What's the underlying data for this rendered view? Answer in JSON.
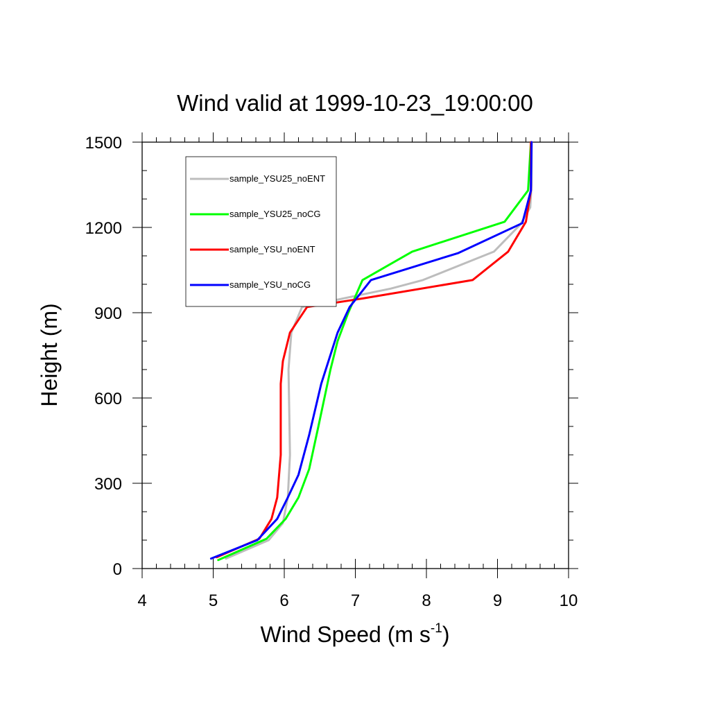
{
  "chart_data": {
    "type": "line",
    "title": "Wind valid at 1999-10-23_19:00:00",
    "xlabel": {
      "main": "Wind Speed (m s",
      "superscript": "-1",
      "close": ")"
    },
    "ylabel": "Height (m)",
    "xlim": [
      4,
      10
    ],
    "ylim": [
      0,
      1500
    ],
    "xticks": [
      4,
      5,
      6,
      7,
      8,
      9,
      10
    ],
    "yticks": [
      0,
      300,
      600,
      900,
      1200,
      1500
    ],
    "xtick_labels": [
      "4",
      "5",
      "6",
      "7",
      "8",
      "9",
      "10"
    ],
    "ytick_labels": [
      "0",
      "300",
      "600",
      "900",
      "1200",
      "1500"
    ],
    "grid": false,
    "legend_position": "top-left",
    "series": [
      {
        "name": "sample_YSU25_noENT",
        "color": "#bdbdbd",
        "points": [
          [
            5.18,
            35
          ],
          [
            5.78,
            100
          ],
          [
            5.98,
            160
          ],
          [
            6.05,
            250
          ],
          [
            6.08,
            400
          ],
          [
            6.07,
            550
          ],
          [
            6.06,
            700
          ],
          [
            6.1,
            830
          ],
          [
            6.25,
            920
          ],
          [
            7.5,
            985
          ],
          [
            7.95,
            1015
          ],
          [
            8.95,
            1115
          ],
          [
            9.32,
            1210
          ],
          [
            9.46,
            1270
          ],
          [
            9.48,
            1350
          ],
          [
            9.48,
            1500
          ]
        ]
      },
      {
        "name": "sample_YSU25_noCG",
        "color": "#00ff00",
        "points": [
          [
            5.07,
            30
          ],
          [
            5.75,
            105
          ],
          [
            6.02,
            175
          ],
          [
            6.2,
            250
          ],
          [
            6.35,
            350
          ],
          [
            6.48,
            500
          ],
          [
            6.65,
            700
          ],
          [
            6.75,
            800
          ],
          [
            6.9,
            900
          ],
          [
            7.1,
            1015
          ],
          [
            7.8,
            1115
          ],
          [
            9.1,
            1220
          ],
          [
            9.43,
            1330
          ],
          [
            9.47,
            1500
          ]
        ]
      },
      {
        "name": "sample_YSU_noENT",
        "color": "#ff0000",
        "points": [
          [
            5.05,
            40
          ],
          [
            5.65,
            105
          ],
          [
            5.82,
            175
          ],
          [
            5.9,
            250
          ],
          [
            5.95,
            400
          ],
          [
            5.95,
            550
          ],
          [
            5.95,
            650
          ],
          [
            5.98,
            730
          ],
          [
            6.08,
            830
          ],
          [
            6.32,
            920
          ],
          [
            7.1,
            950
          ],
          [
            8.65,
            1015
          ],
          [
            9.15,
            1115
          ],
          [
            9.4,
            1220
          ],
          [
            9.47,
            1330
          ],
          [
            9.47,
            1500
          ]
        ]
      },
      {
        "name": "sample_YSU_noCG",
        "color": "#0000ff",
        "points": [
          [
            4.97,
            35
          ],
          [
            5.62,
            100
          ],
          [
            5.9,
            175
          ],
          [
            6.05,
            250
          ],
          [
            6.2,
            330
          ],
          [
            6.35,
            470
          ],
          [
            6.52,
            650
          ],
          [
            6.75,
            830
          ],
          [
            6.92,
            920
          ],
          [
            7.22,
            1015
          ],
          [
            8.45,
            1110
          ],
          [
            9.35,
            1215
          ],
          [
            9.47,
            1330
          ],
          [
            9.48,
            1500
          ]
        ]
      }
    ]
  }
}
